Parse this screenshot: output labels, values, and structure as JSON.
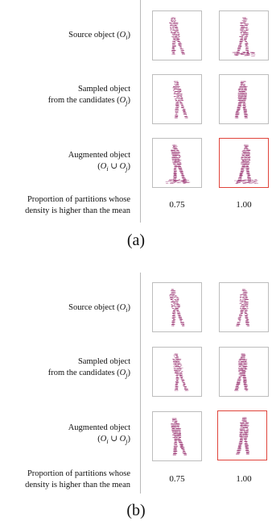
{
  "panels": [
    {
      "rows": [
        {
          "line1": "Source object (",
          "sym": "O",
          "subscript": "i",
          "close": ")"
        },
        {
          "line1": "Sampled object",
          "line2": "from the candidates (",
          "sym": "O",
          "subscript": "j",
          "close": ")"
        },
        {
          "line1": "Augmented object",
          "line2": "(",
          "sym": "O",
          "subscript": "i",
          "mid": " ∪ ",
          "sym2": "O",
          "subscript2": "j",
          "close": ")"
        }
      ],
      "prop_line1": "Proportion of partitions whose",
      "prop_line2": "density is higher than the mean",
      "values": [
        "0.75",
        "1.00"
      ],
      "caption": "(a)"
    },
    {
      "rows": [
        {
          "line1": "Source object (",
          "sym": "O",
          "subscript": "i",
          "close": ")"
        },
        {
          "line1": "Sampled object",
          "line2": "from the candidates (",
          "sym": "O",
          "subscript": "j",
          "close": ")"
        },
        {
          "line1": "Augmented object",
          "line2": "(",
          "sym": "O",
          "subscript": "i",
          "mid": " ∪ ",
          "sym2": "O",
          "subscript2": "j",
          "close": ")"
        }
      ],
      "prop_line1": "Proportion of partitions whose",
      "prop_line2": "density is higher than the mean",
      "values": [
        "0.75",
        "1.00"
      ],
      "caption": "(b)"
    }
  ],
  "colors": {
    "points": "#a0407a",
    "frame": "#bdbdbd",
    "highlight": "#e0443b",
    "divider": "#b9b9b9"
  },
  "icons": [
    "point-cloud-pedestrian"
  ]
}
